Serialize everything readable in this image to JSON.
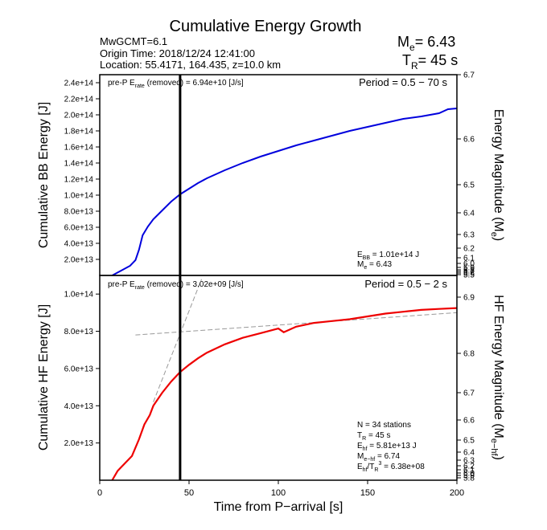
{
  "header": {
    "title": "Cumulative Energy Growth",
    "event": "MwGCMT=6.1",
    "origin": "Origin Time: 2018/12/24 12:41:00",
    "location": "Location: 55.4171, 164.435, z=10.0 km",
    "me_label": "M",
    "me_sub": "e",
    "me_value": "= 6.43",
    "tr_label": "T",
    "tr_sub": "R",
    "tr_value": "= 45 s"
  },
  "chart_data": [
    {
      "type": "line",
      "panel": "broadband",
      "ylabel": "Cumulative BB Energy [J]",
      "y2label": "Energy Magnitude (M",
      "y2label_sub": "e",
      "y2label_end": ")",
      "xlim": [
        0,
        200
      ],
      "ylim": [
        0,
        250000000000000.0
      ],
      "yticks": [
        "2.4e+14",
        "2.2e+14",
        "2.0e+14",
        "1.8e+14",
        "1.6e+14",
        "1.4e+14",
        "1.2e+14",
        "1.0e+14",
        "8.0e+13",
        "6.0e+13",
        "4.0e+13",
        "2.0e+13"
      ],
      "y2ticks": [
        "6.7",
        "6.6",
        "6.5",
        "6.4",
        "6.3",
        "6.2",
        "6.1",
        "6.0",
        "5.9",
        "5.8",
        "5.7",
        "5.6",
        "5.5"
      ],
      "prep_a": "pre-P E",
      "prep_sub": "rate",
      "prep_b": " (removed) = 6.94e+10 [J/s]",
      "period": "Period = 0.5 − 70 s",
      "color": "#0000dd",
      "vline_x": 45,
      "annot": [
        {
          "a": "E",
          "s": "BB",
          "b": " = 1.01e+14 J"
        },
        {
          "a": "M",
          "s": "e",
          "b": " = 6.43"
        }
      ],
      "series": [
        {
          "x": [
            7,
            12,
            17,
            20,
            22,
            24,
            27,
            30,
            35,
            40,
            45,
            50,
            55,
            60,
            70,
            80,
            90,
            100,
            110,
            120,
            130,
            140,
            150,
            160,
            170,
            180,
            190,
            195,
            200
          ],
          "y": [
            0,
            6000000000000.0,
            12000000000000.0,
            19000000000000.0,
            32000000000000.0,
            50000000000000.0,
            61000000000000.0,
            70000000000000.0,
            81000000000000.0,
            92000000000000.0,
            101000000000000.0,
            108000000000000.0,
            115000000000000.0,
            121000000000000.0,
            131000000000000.0,
            140000000000000.0,
            148000000000000.0,
            155000000000000.0,
            162000000000000.0,
            168000000000000.0,
            174000000000000.0,
            180000000000000.0,
            185000000000000.0,
            190000000000000.0,
            195000000000000.0,
            198000000000000.0,
            202000000000000.0,
            207000000000000.0,
            208000000000000.0
          ]
        }
      ]
    },
    {
      "type": "line",
      "panel": "high-frequency",
      "ylabel": "Cumulative HF Energy [J]",
      "y2label": "HF Energy Magnitude (M",
      "y2label_sub": "e−hf",
      "y2label_end": ")",
      "xlabel": "Time from P−arrival [s]",
      "xlim": [
        0,
        200
      ],
      "ylim": [
        0,
        110000000000000.0
      ],
      "xticks": [
        "0",
        "50",
        "100",
        "150",
        "200"
      ],
      "yticks": [
        "1.0e+14",
        "8.0e+13",
        "6.0e+13",
        "4.0e+13",
        "2.0e+13"
      ],
      "y2ticks": [
        "6.9",
        "6.8",
        "6.7",
        "6.6",
        "6.5",
        "6.4",
        "6.3",
        "6.2",
        "6.1",
        "6.0",
        "5.9",
        "5.8"
      ],
      "prep_a": "pre-P E",
      "prep_sub": "rate",
      "prep_b": " (removed) = 3.02e+09 [J/s]",
      "period": "Period = 0.5 − 2 s",
      "color": "#ee0000",
      "vline_x": 45,
      "annot": [
        {
          "a": "N = 34 stations",
          "s": "",
          "b": ""
        },
        {
          "a": "T",
          "s": "R",
          "b": " = 45  s"
        },
        {
          "a": "E",
          "s": "hf",
          "b": " = 5.81e+13 J"
        },
        {
          "a": "M",
          "s": "e−hf",
          "b": " = 6.74"
        },
        {
          "a": "E",
          "s": "hf",
          "b": "/T",
          "s2": "R",
          "b2": "3",
          "b3": " =  6.38e+08"
        }
      ],
      "series": [
        {
          "x": [
            7,
            10,
            14,
            18,
            22,
            25,
            28,
            30,
            35,
            40,
            45,
            50,
            55,
            60,
            70,
            80,
            90,
            100,
            103,
            110,
            120,
            130,
            140,
            150,
            160,
            170,
            180,
            190,
            200
          ],
          "y": [
            0,
            5000000000000.0,
            9000000000000.0,
            13000000000000.0,
            22000000000000.0,
            30000000000000.0,
            35000000000000.0,
            40000000000000.0,
            47000000000000.0,
            53000000000000.0,
            58100000000000.0,
            62000000000000.0,
            65500000000000.0,
            68500000000000.0,
            73000000000000.0,
            76500000000000.0,
            79000000000000.0,
            81500000000000.0,
            79500000000000.0,
            82500000000000.0,
            84500000000000.0,
            85500000000000.0,
            86500000000000.0,
            88000000000000.0,
            89500000000000.0,
            90500000000000.0,
            91500000000000.0,
            92000000000000.0,
            92500000000000.0
          ]
        }
      ],
      "guides": [
        {
          "x": [
            20,
            200
          ],
          "y": [
            78000000000000.0,
            90000000000000.0
          ]
        },
        {
          "x": [
            30,
            57
          ],
          "y": [
            42000000000000.0,
            108000000000000.0
          ]
        }
      ]
    }
  ]
}
